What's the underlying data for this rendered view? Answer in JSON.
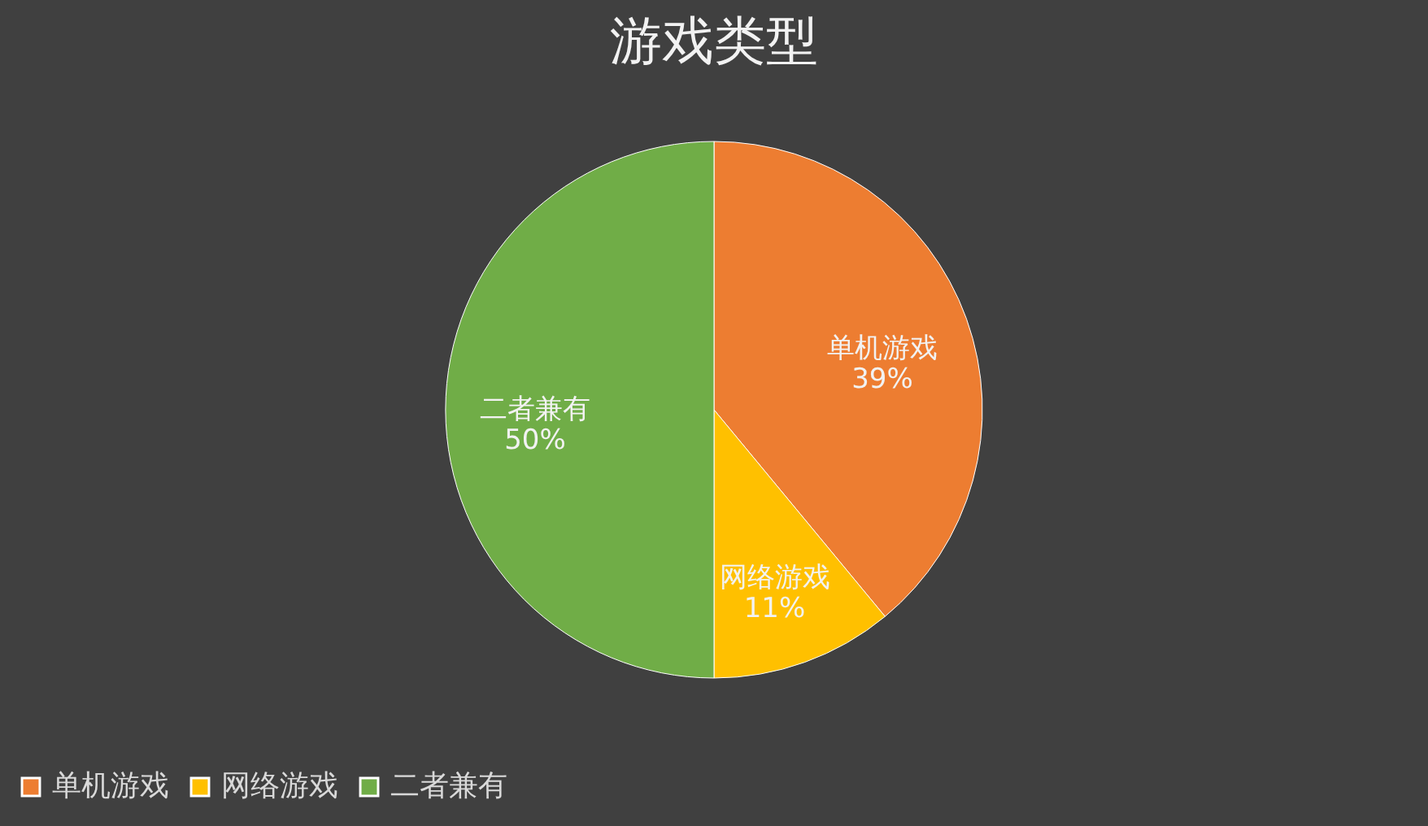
{
  "chart_data": {
    "type": "pie",
    "title": "游戏类型",
    "categories": [
      "单机游戏",
      "网络游戏",
      "二者兼有"
    ],
    "values": [
      39,
      11,
      50
    ],
    "colors": [
      "#ed7d31",
      "#ffc000",
      "#70ad47"
    ],
    "value_labels": [
      "39%",
      "11%",
      "50%"
    ],
    "legend": "bottom"
  }
}
